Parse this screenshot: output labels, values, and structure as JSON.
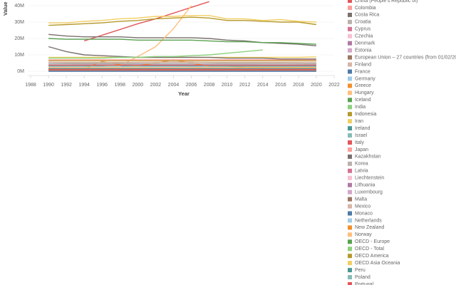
{
  "chart_data": {
    "type": "line",
    "x_label": "Year",
    "y_label": "Value",
    "x": [
      1990,
      1992,
      1994,
      1996,
      1998,
      2000,
      2002,
      2004,
      2006,
      2008,
      2010,
      2012,
      2014,
      2016,
      2018,
      2020
    ],
    "xlim": [
      1988,
      2022
    ],
    "xticks": [
      1988,
      1990,
      1992,
      1994,
      1996,
      1998,
      2000,
      2002,
      2004,
      2006,
      2008,
      2010,
      2012,
      2014,
      2016,
      2018,
      2020,
      2022
    ],
    "ylim": [
      0,
      40000000
    ],
    "yticks": [
      {
        "value": 0,
        "label": "0M"
      },
      {
        "value": 10000000,
        "label": "10M"
      },
      {
        "value": 20000000,
        "label": "20M"
      },
      {
        "value": 30000000,
        "label": "30M"
      },
      {
        "value": 40000000,
        "label": "40M"
      }
    ],
    "grid": true,
    "series": [
      {
        "name": "China (People's Republic of)",
        "color": "#e15759",
        "values": [
          null,
          null,
          18500000.0,
          22000000.0,
          25500000.0,
          29000000.0,
          32000000.0,
          35500000.0,
          39000000.0,
          42500000.0,
          null,
          null,
          null,
          null,
          null,
          null
        ]
      },
      {
        "name": "Colombia",
        "color": "#ff9d9a",
        "values": [
          1400000.0,
          1400000.0,
          1500000.0,
          1500000.0,
          1600000.0,
          1600000.0,
          1700000.0,
          1700000.0,
          1800000.0,
          1800000.0,
          1900000.0,
          1900000.0,
          2000000.0,
          2000000.0,
          2100000.0,
          2100000.0
        ]
      },
      {
        "name": "Costa Rica",
        "color": "#79706e",
        "values": [
          22500000.0,
          21500000.0,
          21000000.0,
          21000000.0,
          21000000.0,
          20500000.0,
          20500000.0,
          20500000.0,
          20500000.0,
          20000000.0,
          19000000.0,
          18500000.0,
          17500000.0,
          17000000.0,
          16500000.0,
          15500000.0
        ]
      },
      {
        "name": "Croatia",
        "color": "#bab0ac",
        "values": [
          500000.0,
          500000.0,
          500000.0,
          500000.0,
          500000.0,
          500000.0,
          500000.0,
          500000.0,
          500000.0,
          500000.0,
          500000.0,
          500000.0,
          500000.0,
          500000.0,
          500000.0,
          500000.0
        ]
      },
      {
        "name": "Cyprus",
        "color": "#d37295",
        "values": [
          300000.0,
          300000.0,
          300000.0,
          300000.0,
          300000.0,
          300000.0,
          300000.0,
          300000.0,
          300000.0,
          300000.0,
          300000.0,
          300000.0,
          300000.0,
          300000.0,
          300000.0,
          300000.0
        ]
      },
      {
        "name": "Czechia",
        "color": "#fabfd2",
        "values": [
          2500000.0,
          2400000.0,
          2300000.0,
          2200000.0,
          2200000.0,
          2200000.0,
          2300000.0,
          2300000.0,
          2400000.0,
          2400000.0,
          2300000.0,
          2300000.0,
          2200000.0,
          2200000.0,
          2100000.0,
          2100000.0
        ]
      },
      {
        "name": "Denmark",
        "color": "#b07aa1",
        "values": [
          1200000.0,
          1200000.0,
          1200000.0,
          1200000.0,
          1200000.0,
          1200000.0,
          1200000.0,
          1200000.0,
          1200000.0,
          1200000.0,
          1200000.0,
          1200000.0,
          1200000.0,
          1200000.0,
          1200000.0,
          1200000.0
        ]
      },
      {
        "name": "Estonia",
        "color": "#d4a6c8",
        "values": [
          400000.0,
          400000.0,
          400000.0,
          400000.0,
          400000.0,
          400000.0,
          400000.0,
          400000.0,
          400000.0,
          400000.0,
          400000.0,
          400000.0,
          400000.0,
          400000.0,
          400000.0,
          400000.0
        ]
      },
      {
        "name": "European Union – 27 countries (from 01/02/2020)",
        "color": "#9d7660",
        "values": [
          5500000.0,
          5300000.0,
          5200000.0,
          5200000.0,
          5300000.0,
          5400000.0,
          5500000.0,
          5600000.0,
          5600000.0,
          5400000.0,
          5200000.0,
          5100000.0,
          5000000.0,
          4900000.0,
          4800000.0,
          4600000.0
        ]
      },
      {
        "name": "Finland",
        "color": "#d7b5a6",
        "values": [
          1000000.0,
          1000000.0,
          1000000.0,
          1000000.0,
          1000000.0,
          1000000.0,
          1000000.0,
          1000000.0,
          1000000.0,
          1000000.0,
          1000000.0,
          1000000.0,
          1000000.0,
          1000000.0,
          1000000.0,
          1000000.0
        ]
      },
      {
        "name": "France",
        "color": "#4e79a7",
        "values": [
          3200000.0,
          3200000.0,
          3300000.0,
          3300000.0,
          3400000.0,
          3400000.0,
          3500000.0,
          3500000.0,
          3500000.0,
          3500000.0,
          3400000.0,
          3400000.0,
          3300000.0,
          3300000.0,
          3200000.0,
          3200000.0
        ]
      },
      {
        "name": "Germany",
        "color": "#a0cbe8",
        "values": [
          4500000.0,
          4500000.0,
          4400000.0,
          4400000.0,
          4300000.0,
          4300000.0,
          4200000.0,
          4200000.0,
          4200000.0,
          4100000.0,
          4100000.0,
          4100000.0,
          4000000.0,
          4000000.0,
          4000000.0,
          4000000.0
        ]
      },
      {
        "name": "Greece",
        "color": "#f28e2b",
        "values": [
          1000000.0,
          1000000.0,
          1500000.0,
          6000000.0,
          4000000.0,
          3500000.0,
          5000000.0,
          7000000.0,
          5000000.0,
          3000000.0,
          3000000.0,
          2500000.0,
          2500000.0,
          2500000.0,
          2500000.0,
          2500000.0
        ]
      },
      {
        "name": "Hungary",
        "color": "#ffbe7d",
        "values": [
          3000000.0,
          3000000.0,
          3000000.0,
          3000000.0,
          3500000.0,
          9000000.0,
          15000000.0,
          26000000.0,
          40000000.0,
          null,
          null,
          null,
          null,
          null,
          null,
          null
        ]
      },
      {
        "name": "Iceland",
        "color": "#59a14f",
        "values": [
          200000.0,
          200000.0,
          200000.0,
          200000.0,
          200000.0,
          200000.0,
          200000.0,
          200000.0,
          200000.0,
          200000.0,
          200000.0,
          200000.0,
          200000.0,
          200000.0,
          200000.0,
          200000.0
        ]
      },
      {
        "name": "India",
        "color": "#8cd17d",
        "values": [
          2000000.0,
          2000000.0,
          2000000.0,
          2000000.0,
          2000000.0,
          2000000.0,
          2000000.0,
          2000000.0,
          2000000.0,
          2000000.0,
          2000000.0,
          2000000.0,
          2000000.0,
          2000000.0,
          2000000.0,
          2000000.0
        ]
      },
      {
        "name": "Indonesia",
        "color": "#b6992d",
        "values": [
          6500000.0,
          6500000.0,
          6500000.0,
          6500000.0,
          6500000.0,
          6500000.0,
          6500000.0,
          6500000.0,
          6500000.0,
          6500000.0,
          6500000.0,
          6500000.0,
          6500000.0,
          6500000.0,
          6500000.0,
          6500000.0
        ]
      },
      {
        "name": "Iran",
        "color": "#f1ce63",
        "values": [
          8500000.0,
          8500000.0,
          8500000.0,
          8500000.0,
          8500000.0,
          8500000.0,
          8500000.0,
          8500000.0,
          8500000.0,
          8500000.0,
          8500000.0,
          8500000.0,
          8500000.0,
          8500000.0,
          8500000.0,
          8800000.0
        ]
      },
      {
        "name": "Ireland",
        "color": "#499894",
        "values": [
          1300000.0,
          1300000.0,
          1300000.0,
          1300000.0,
          1300000.0,
          1300000.0,
          1300000.0,
          1300000.0,
          1300000.0,
          1300000.0,
          1300000.0,
          1300000.0,
          1300000.0,
          1300000.0,
          1300000.0,
          1300000.0
        ]
      },
      {
        "name": "Israel",
        "color": "#86bcb6",
        "values": [
          800000.0,
          800000.0,
          800000.0,
          800000.0,
          800000.0,
          800000.0,
          800000.0,
          800000.0,
          800000.0,
          800000.0,
          800000.0,
          800000.0,
          800000.0,
          800000.0,
          800000.0,
          800000.0
        ]
      },
      {
        "name": "Italy",
        "color": "#e15759",
        "values": [
          3800000.0,
          3800000.0,
          3800000.0,
          3800000.0,
          3800000.0,
          3800000.0,
          3800000.0,
          3800000.0,
          3800000.0,
          3800000.0,
          3800000.0,
          3800000.0,
          3800000.0,
          3800000.0,
          3800000.0,
          3800000.0
        ]
      },
      {
        "name": "Japan",
        "color": "#ff9d9a",
        "values": [
          7000000.0,
          7000000.0,
          7000000.0,
          7000000.0,
          7000000.0,
          7000000.0,
          7000000.0,
          7000000.0,
          7000000.0,
          7000000.0,
          7000000.0,
          7000000.0,
          7000000.0,
          7000000.0,
          7000000.0,
          7000000.0
        ]
      },
      {
        "name": "Kazakhstan",
        "color": "#79706e",
        "values": [
          15000000.0,
          12000000.0,
          10000000.0,
          9500000.0,
          9000000.0,
          8500000.0,
          8500000.0,
          8500000.0,
          8500000.0,
          8500000.0,
          8000000.0,
          8000000.0,
          8000000.0,
          7500000.0,
          7500000.0,
          7500000.0
        ]
      },
      {
        "name": "Korea",
        "color": "#bab0ac",
        "values": [
          4800000.0,
          4800000.0,
          4800000.0,
          4800000.0,
          4800000.0,
          4800000.0,
          4800000.0,
          4800000.0,
          4800000.0,
          4800000.0,
          4800000.0,
          4800000.0,
          4800000.0,
          4800000.0,
          4800000.0,
          4800000.0
        ]
      },
      {
        "name": "Latvia",
        "color": "#d37295",
        "values": [
          600000.0,
          600000.0,
          600000.0,
          600000.0,
          600000.0,
          600000.0,
          600000.0,
          600000.0,
          600000.0,
          600000.0,
          600000.0,
          600000.0,
          600000.0,
          600000.0,
          600000.0,
          600000.0
        ]
      },
      {
        "name": "Liechtenstein",
        "color": "#fabfd2",
        "values": [
          50000.0,
          50000.0,
          50000.0,
          50000.0,
          50000.0,
          50000.0,
          50000.0,
          50000.0,
          50000.0,
          50000.0,
          50000.0,
          50000.0,
          50000.0,
          50000.0,
          50000.0,
          50000.0
        ]
      },
      {
        "name": "Lithuania",
        "color": "#b07aa1",
        "values": [
          700000.0,
          700000.0,
          700000.0,
          700000.0,
          700000.0,
          700000.0,
          700000.0,
          700000.0,
          700000.0,
          700000.0,
          700000.0,
          700000.0,
          700000.0,
          700000.0,
          700000.0,
          700000.0
        ]
      },
      {
        "name": "Luxembourg",
        "color": "#d4a6c8",
        "values": [
          100000.0,
          100000.0,
          100000.0,
          100000.0,
          100000.0,
          100000.0,
          100000.0,
          100000.0,
          100000.0,
          100000.0,
          100000.0,
          100000.0,
          100000.0,
          100000.0,
          100000.0,
          100000.0
        ]
      },
      {
        "name": "Malta",
        "color": "#9d7660",
        "values": [
          100000.0,
          100000.0,
          100000.0,
          100000.0,
          100000.0,
          100000.0,
          100000.0,
          100000.0,
          100000.0,
          100000.0,
          100000.0,
          100000.0,
          100000.0,
          100000.0,
          100000.0,
          100000.0
        ]
      },
      {
        "name": "Mexico",
        "color": "#d7b5a6",
        "values": [
          5500000.0,
          5500000.0,
          5500000.0,
          5500000.0,
          5500000.0,
          5500000.0,
          5500000.0,
          5500000.0,
          5500000.0,
          5500000.0,
          5500000.0,
          5500000.0,
          5500000.0,
          5500000.0,
          5500000.0,
          5500000.0
        ]
      },
      {
        "name": "Monaco",
        "color": "#4e79a7",
        "values": [
          20000.0,
          20000.0,
          20000.0,
          20000.0,
          20000.0,
          20000.0,
          20000.0,
          20000.0,
          20000.0,
          20000.0,
          20000.0,
          20000.0,
          20000.0,
          20000.0,
          20000.0,
          20000.0
        ]
      },
      {
        "name": "Netherlands",
        "color": "#a0cbe8",
        "values": [
          1800000.0,
          1800000.0,
          1800000.0,
          1800000.0,
          1800000.0,
          1800000.0,
          1800000.0,
          1800000.0,
          1800000.0,
          1800000.0,
          1800000.0,
          1800000.0,
          1800000.0,
          1800000.0,
          1800000.0,
          1800000.0
        ]
      },
      {
        "name": "New Zealand",
        "color": "#f28e2b",
        "values": [
          900000.0,
          900000.0,
          900000.0,
          900000.0,
          900000.0,
          900000.0,
          900000.0,
          900000.0,
          900000.0,
          900000.0,
          900000.0,
          900000.0,
          900000.0,
          900000.0,
          900000.0,
          900000.0
        ]
      },
      {
        "name": "Norway",
        "color": "#ffbe7d",
        "values": [
          2200000.0,
          2200000.0,
          2200000.0,
          2200000.0,
          2200000.0,
          2200000.0,
          2200000.0,
          2200000.0,
          2200000.0,
          2200000.0,
          2200000.0,
          2200000.0,
          2200000.0,
          2200000.0,
          2200000.0,
          2200000.0
        ]
      },
      {
        "name": "OECD - Europe",
        "color": "#59a14f",
        "values": [
          20000000.0,
          19500000.0,
          19500000.0,
          19500000.0,
          19500000.0,
          19000000.0,
          19000000.0,
          19000000.0,
          19000000.0,
          18500000.0,
          18000000.0,
          18000000.0,
          17500000.0,
          17500000.0,
          17000000.0,
          16500000.0
        ]
      },
      {
        "name": "OECD - Total",
        "color": "#8cd17d",
        "values": [
          8000000.0,
          8000000.0,
          8000000.0,
          8000000.0,
          8500000.0,
          8500000.0,
          9000000.0,
          9000000.0,
          9500000.0,
          10000000.0,
          11000000.0,
          12000000.0,
          13000000.0,
          null,
          null,
          null
        ]
      },
      {
        "name": "OECD America",
        "color": "#b6992d",
        "values": [
          28000000.0,
          28500000.0,
          29000000.0,
          29500000.0,
          30500000.0,
          31000000.0,
          32000000.0,
          32500000.0,
          33000000.0,
          32500000.0,
          31000000.0,
          31000000.0,
          30500000.0,
          30000000.0,
          30000000.0,
          28500000.0
        ]
      },
      {
        "name": "OECD Asia Oceania",
        "color": "#f1ce63",
        "values": [
          29500000.0,
          29500000.0,
          30500000.0,
          31000000.0,
          32000000.0,
          32500000.0,
          33500000.0,
          33500000.0,
          34000000.0,
          34000000.0,
          32000000.0,
          32000000.0,
          31000000.0,
          31500000.0,
          30500000.0,
          30000000.0
        ]
      },
      {
        "name": "Peru",
        "color": "#499894",
        "values": [
          1600000.0,
          1600000.0,
          1600000.0,
          1600000.0,
          1600000.0,
          1600000.0,
          1600000.0,
          1600000.0,
          1600000.0,
          1600000.0,
          1600000.0,
          1600000.0,
          1600000.0,
          1600000.0,
          1600000.0,
          1600000.0
        ]
      },
      {
        "name": "Poland",
        "color": "#86bcb6",
        "values": [
          3000000.0,
          3000000.0,
          3000000.0,
          3000000.0,
          3000000.0,
          3000000.0,
          3000000.0,
          3000000.0,
          3000000.0,
          3000000.0,
          3000000.0,
          3000000.0,
          3000000.0,
          3000000.0,
          3000000.0,
          3000000.0
        ]
      },
      {
        "name": "Portugal",
        "color": "#e15759",
        "values": [
          1100000.0,
          1100000.0,
          1100000.0,
          1100000.0,
          1100000.0,
          1100000.0,
          1100000.0,
          1100000.0,
          1100000.0,
          1100000.0,
          1100000.0,
          1100000.0,
          1100000.0,
          1100000.0,
          1100000.0,
          1100000.0
        ]
      }
    ]
  }
}
